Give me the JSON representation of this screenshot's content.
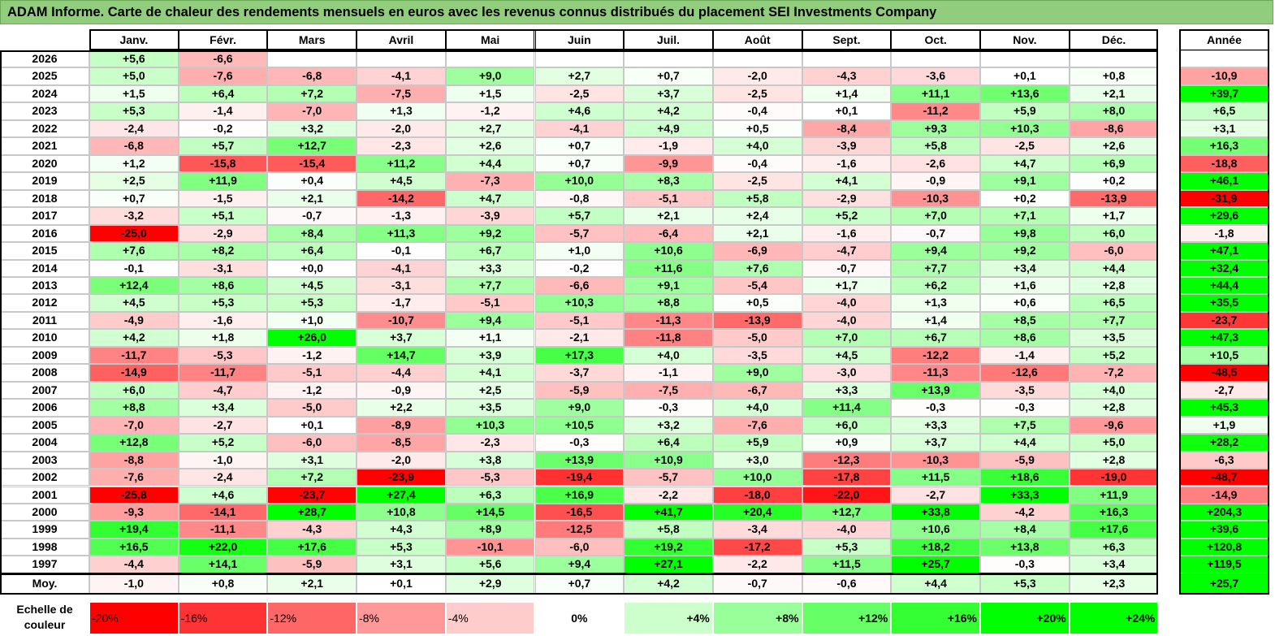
{
  "title": "ADAM Informe. Carte de chaleur des rendements mensuels en euros avec les revenus connus distribués du placement SEI Investments Company",
  "chart_data": {
    "type": "heatmap",
    "columns": [
      "Janv.",
      "Févr.",
      "Mars",
      "Avril",
      "Mai",
      "Juin",
      "Juil.",
      "Août",
      "Sept.",
      "Oct.",
      "Nov.",
      "Déc."
    ],
    "year_column_label": "Année",
    "average_row_label": "Moy.",
    "rows": [
      {
        "year": "2026",
        "values": [
          "+5,6",
          "-6,6",
          "",
          "",
          "",
          "",
          "",
          "",
          "",
          "",
          "",
          ""
        ],
        "annual": ""
      },
      {
        "year": "2025",
        "values": [
          "+5,0",
          "-7,6",
          "-6,8",
          "-4,1",
          "+9,0",
          "+2,7",
          "+0,7",
          "-2,0",
          "-4,3",
          "-3,6",
          "+0,1",
          "+0,8"
        ],
        "annual": "-10,9"
      },
      {
        "year": "2024",
        "values": [
          "+1,5",
          "+6,4",
          "+7,2",
          "-7,5",
          "+1,5",
          "-2,5",
          "+3,7",
          "-2,5",
          "+1,4",
          "+11,1",
          "+13,6",
          "+2,1"
        ],
        "annual": "+39,7"
      },
      {
        "year": "2023",
        "values": [
          "+5,3",
          "-1,4",
          "-7,0",
          "+1,3",
          "-1,2",
          "+4,6",
          "+4,2",
          "-0,4",
          "+0,1",
          "-11,2",
          "+5,9",
          "+8,0"
        ],
        "annual": "+6,5"
      },
      {
        "year": "2022",
        "values": [
          "-2,4",
          "-0,2",
          "+3,2",
          "-2,0",
          "+2,7",
          "-4,1",
          "+4,9",
          "+0,5",
          "-8,4",
          "+9,3",
          "+10,3",
          "-8,6"
        ],
        "annual": "+3,1"
      },
      {
        "year": "2021",
        "values": [
          "-6,8",
          "+5,7",
          "+12,7",
          "-2,3",
          "+2,6",
          "+0,7",
          "-1,9",
          "+4,0",
          "-3,9",
          "+5,8",
          "-2,5",
          "+2,6"
        ],
        "annual": "+16,3"
      },
      {
        "year": "2020",
        "values": [
          "+1,2",
          "-15,8",
          "-15,4",
          "+11,2",
          "+4,4",
          "+0,7",
          "-9,9",
          "-0,4",
          "-1,6",
          "-2,6",
          "+4,7",
          "+6,9"
        ],
        "annual": "-18,8"
      },
      {
        "year": "2019",
        "values": [
          "+2,5",
          "+11,9",
          "+0,4",
          "+4,5",
          "-7,3",
          "+10,0",
          "+8,3",
          "-2,5",
          "+4,1",
          "-0,9",
          "+9,1",
          "+0,2"
        ],
        "annual": "+46,1"
      },
      {
        "year": "2018",
        "values": [
          "+0,7",
          "-1,5",
          "+2,1",
          "-14,2",
          "+4,7",
          "-0,8",
          "-5,1",
          "+5,8",
          "-2,9",
          "-10,3",
          "+0,2",
          "-13,9"
        ],
        "annual": "-31,9"
      },
      {
        "year": "2017",
        "values": [
          "-3,2",
          "+5,1",
          "-0,7",
          "-1,3",
          "-3,9",
          "+5,7",
          "+2,1",
          "+2,4",
          "+5,2",
          "+7,0",
          "+7,1",
          "+1,7"
        ],
        "annual": "+29,6"
      },
      {
        "year": "2016",
        "values": [
          "-25,0",
          "-2,9",
          "+8,4",
          "+11,3",
          "+9,2",
          "-5,7",
          "-6,4",
          "+2,1",
          "-1,6",
          "-0,7",
          "+9,8",
          "+6,0"
        ],
        "annual": "-1,8"
      },
      {
        "year": "2015",
        "values": [
          "+7,6",
          "+8,2",
          "+6,4",
          "-0,1",
          "+6,7",
          "+1,0",
          "+10,6",
          "-6,9",
          "-4,7",
          "+9,4",
          "+9,2",
          "-6,0"
        ],
        "annual": "+47,1"
      },
      {
        "year": "2014",
        "values": [
          "-0,1",
          "-3,1",
          "+0,0",
          "-4,1",
          "+3,3",
          "-0,2",
          "+11,6",
          "+7,6",
          "-0,7",
          "+7,7",
          "+3,4",
          "+4,4"
        ],
        "annual": "+32,4"
      },
      {
        "year": "2013",
        "values": [
          "+12,4",
          "+8,6",
          "+4,5",
          "-3,1",
          "+7,7",
          "-6,6",
          "+9,1",
          "-5,4",
          "+1,7",
          "+6,2",
          "+1,6",
          "+2,8"
        ],
        "annual": "+44,4"
      },
      {
        "year": "2012",
        "values": [
          "+4,5",
          "+5,3",
          "+5,3",
          "-1,7",
          "-5,1",
          "+10,3",
          "+8,8",
          "+0,5",
          "-4,0",
          "+1,3",
          "+0,6",
          "+6,5"
        ],
        "annual": "+35,5"
      },
      {
        "year": "2011",
        "values": [
          "-4,9",
          "-1,6",
          "+1,0",
          "-10,7",
          "+9,4",
          "-5,1",
          "-11,3",
          "-13,9",
          "-4,0",
          "+1,4",
          "+8,5",
          "+7,7"
        ],
        "annual": "-23,7"
      },
      {
        "year": "2010",
        "values": [
          "+4,2",
          "+1,8",
          "+26,0",
          "+3,7",
          "+1,1",
          "-2,1",
          "-11,8",
          "-5,0",
          "+7,0",
          "+6,7",
          "+8,6",
          "+3,5"
        ],
        "annual": "+47,3"
      },
      {
        "year": "2009",
        "values": [
          "-11,7",
          "-5,3",
          "-1,2",
          "+14,7",
          "+3,9",
          "+17,3",
          "+4,0",
          "-3,5",
          "+4,5",
          "-12,2",
          "-1,4",
          "+5,2"
        ],
        "annual": "+10,5"
      },
      {
        "year": "2008",
        "values": [
          "-14,9",
          "-11,7",
          "-5,1",
          "-4,4",
          "+4,1",
          "-3,7",
          "-1,1",
          "+9,0",
          "-3,0",
          "-11,3",
          "-12,6",
          "-7,2"
        ],
        "annual": "-48,5"
      },
      {
        "year": "2007",
        "values": [
          "+6,0",
          "-4,7",
          "-1,2",
          "-0,9",
          "+2,5",
          "-5,9",
          "-7,5",
          "-6,7",
          "+3,3",
          "+13,9",
          "-3,5",
          "+4,0"
        ],
        "annual": "-2,7"
      },
      {
        "year": "2006",
        "values": [
          "+8,8",
          "+3,4",
          "-5,0",
          "+2,2",
          "+3,5",
          "+9,0",
          "-0,3",
          "+4,0",
          "+11,4",
          "-0,3",
          "-0,3",
          "+2,8"
        ],
        "annual": "+45,3"
      },
      {
        "year": "2005",
        "values": [
          "-7,0",
          "-2,7",
          "+0,1",
          "-8,9",
          "+10,3",
          "+10,5",
          "+3,2",
          "-7,6",
          "+6,0",
          "+3,3",
          "+7,5",
          "-9,6"
        ],
        "annual": "+1,9"
      },
      {
        "year": "2004",
        "values": [
          "+12,8",
          "+5,2",
          "-6,0",
          "-8,5",
          "-2,3",
          "-0,3",
          "+6,4",
          "+5,9",
          "+0,9",
          "+3,7",
          "+4,4",
          "+5,0"
        ],
        "annual": "+28,2"
      },
      {
        "year": "2003",
        "values": [
          "-8,8",
          "-1,0",
          "+3,1",
          "-2,0",
          "+3,8",
          "+13,9",
          "+10,9",
          "+3,0",
          "-12,3",
          "-10,3",
          "-5,9",
          "+2,8"
        ],
        "annual": "-6,3"
      },
      {
        "year": "2002",
        "values": [
          "-7,6",
          "-2,4",
          "+7,2",
          "-23,9",
          "-5,3",
          "-19,4",
          "-5,7",
          "+10,0",
          "-17,8",
          "+11,5",
          "+18,6",
          "-19,0"
        ],
        "annual": "-48,7"
      },
      {
        "year": "2001",
        "values": [
          "-25,8",
          "+4,6",
          "-23,7",
          "+27,4",
          "+6,3",
          "+16,9",
          "-2,2",
          "-18,0",
          "-22,0",
          "-2,7",
          "+33,3",
          "+11,9"
        ],
        "annual": "-14,9"
      },
      {
        "year": "2000",
        "values": [
          "-9,3",
          "-14,1",
          "+28,7",
          "+10,8",
          "+14,5",
          "-16,5",
          "+41,7",
          "+20,4",
          "+12,7",
          "+33,8",
          "-4,2",
          "+16,3"
        ],
        "annual": "+204,3"
      },
      {
        "year": "1999",
        "values": [
          "+19,4",
          "-11,1",
          "-4,3",
          "+4,3",
          "+8,9",
          "-12,5",
          "+5,8",
          "-3,4",
          "-4,0",
          "+10,6",
          "+8,4",
          "+17,6"
        ],
        "annual": "+39,6"
      },
      {
        "year": "1998",
        "values": [
          "+16,5",
          "+22,0",
          "+17,6",
          "+5,3",
          "-10,1",
          "-6,0",
          "+19,2",
          "-17,2",
          "+5,3",
          "+18,2",
          "+13,8",
          "+6,3"
        ],
        "annual": "+120,8"
      },
      {
        "year": "1997",
        "values": [
          "-4,4",
          "+14,1",
          "-5,9",
          "+3,1",
          "+5,6",
          "+9,4",
          "+27,1",
          "-2,2",
          "+11,5",
          "+25,7",
          "-0,3",
          "+3,4"
        ],
        "annual": "+119,5"
      }
    ],
    "average": {
      "values": [
        "-1,0",
        "+0,8",
        "+2,1",
        "+0,1",
        "+2,9",
        "+0,7",
        "+4,2",
        "-0,7",
        "-0,6",
        "+4,4",
        "+5,3",
        "+2,3"
      ],
      "annual": "+25,7"
    },
    "scale_label": "Echelle de couleur",
    "scale_steps": [
      "-20%",
      "-16%",
      "-12%",
      "-8%",
      "-4%",
      "0%",
      "+4%",
      "+8%",
      "+12%",
      "+16%",
      "+20%",
      "+24%"
    ],
    "colors": {
      "negative": "#ff0000",
      "neutral": "#ffffff",
      "positive": "#00ff00",
      "title_bg": "#92cd7e"
    }
  }
}
